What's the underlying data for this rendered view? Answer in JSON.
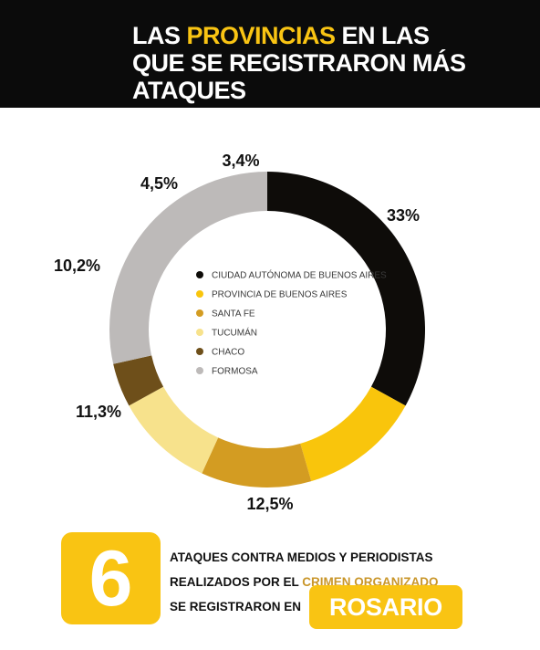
{
  "header": {
    "title_pre": "LAS ",
    "title_highlight": "PROVINCIAS",
    "title_post1": " EN LAS",
    "title_line2": "QUE SE REGISTRARON MÁS",
    "title_line3": "ATAQUES"
  },
  "chart_data": {
    "type": "pie",
    "variant": "donut",
    "legend_placement": "center",
    "slices": [
      {
        "label": "CIUDAD AUTÓNOMA DE BUENOS AIRES",
        "value": 33,
        "display": "33%",
        "color": "#0e0c09"
      },
      {
        "label": "PROVINCIA DE BUENOS AIRES",
        "value": 12.5,
        "display": "12,5%",
        "color": "#f9c50c"
      },
      {
        "label": "SANTA FE",
        "value": 11.3,
        "display": "11,3%",
        "color": "#d39c22"
      },
      {
        "label": "TUCUMÁN",
        "value": 10.2,
        "display": "10,2%",
        "color": "#f7e28c"
      },
      {
        "label": "CHACO",
        "value": 4.5,
        "display": "4,5%",
        "color": "#6e4f1a"
      },
      {
        "label": "FORMOSA",
        "value": 3.4,
        "display": "3,4%",
        "color": "#bdbab9"
      }
    ]
  },
  "footer": {
    "big_number": "6",
    "line1": "ATAQUES CONTRA MEDIOS Y PERIODISTAS",
    "line2_pre": "REALIZADOS POR EL ",
    "line2_highlight": "CRIMEN ORGANIZADO",
    "line3": "SE REGISTRARON EN",
    "city": "ROSARIO"
  }
}
